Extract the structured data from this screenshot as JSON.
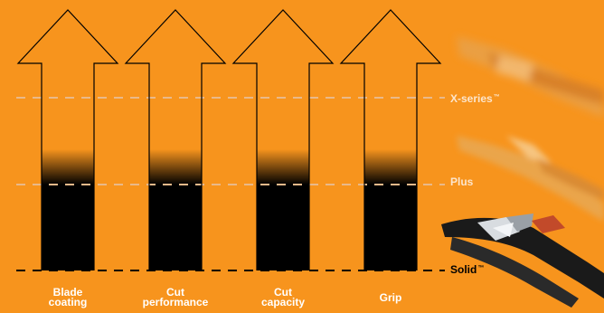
{
  "colors": {
    "background": "#F7941D",
    "fill": "#000000",
    "dashed_line_light": "#E9B98A",
    "dashed_line_dark": "#000000",
    "label_light": "#FCE5CC",
    "label_white": "#FFFFFF",
    "label_dark": "#000000"
  },
  "categories": [
    {
      "line1": "Blade",
      "line2": "coating"
    },
    {
      "line1": "Cut",
      "line2": "performance"
    },
    {
      "line1": "Cut",
      "line2": "capacity"
    },
    {
      "line1": "Grip",
      "line2": ""
    }
  ],
  "tiers": [
    {
      "name": "X-series",
      "mark": "™",
      "style": "light"
    },
    {
      "name": "Plus",
      "mark": "",
      "style": "light"
    },
    {
      "name": "Solid",
      "mark": "™",
      "style": "dark"
    }
  ],
  "icons": {
    "arrows": "up-arrow-icon",
    "pruner_images": [
      "x-series-pruner-image",
      "plus-pruner-image",
      "solid-pruner-image"
    ]
  }
}
